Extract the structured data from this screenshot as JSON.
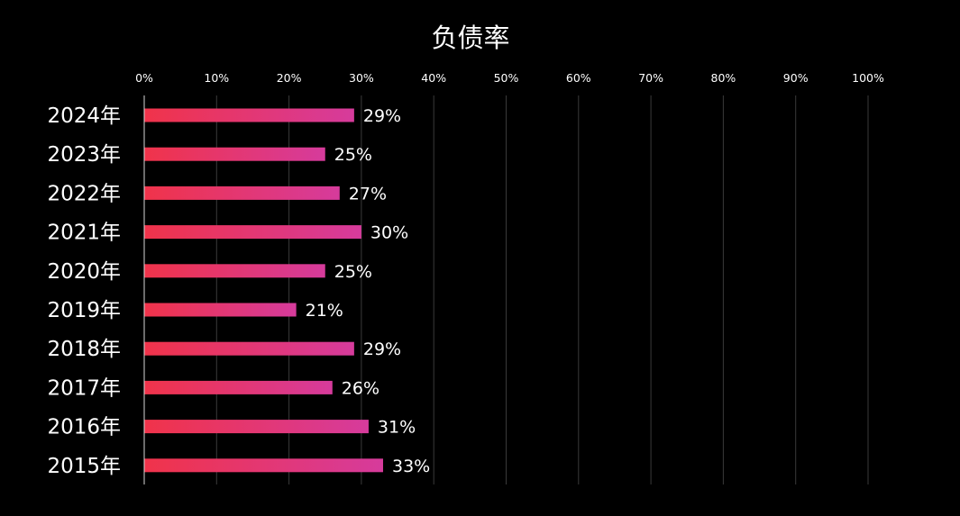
{
  "chart_data": {
    "type": "bar",
    "orientation": "horizontal",
    "title": "负债率",
    "categories": [
      "2024年",
      "2023年",
      "2022年",
      "2021年",
      "2020年",
      "2019年",
      "2018年",
      "2017年",
      "2016年",
      "2015年"
    ],
    "values": [
      29,
      25,
      27,
      30,
      25,
      21,
      29,
      26,
      31,
      33
    ],
    "data_labels": [
      "29%",
      "25%",
      "27%",
      "30%",
      "25%",
      "21%",
      "29%",
      "26%",
      "31%",
      "33%"
    ],
    "xlim": [
      0,
      100
    ],
    "x_ticks": [
      "0%",
      "10%",
      "20%",
      "30%",
      "40%",
      "50%",
      "60%",
      "70%",
      "80%",
      "90%",
      "100%"
    ],
    "x_axis_position": "top",
    "grid": true,
    "colors": {
      "background": "#000000",
      "bar_gradient_start": "#f0334a",
      "bar_gradient_end": "#d63b9c",
      "gridline": "#3a3a3a",
      "text": "#ffffff"
    }
  }
}
